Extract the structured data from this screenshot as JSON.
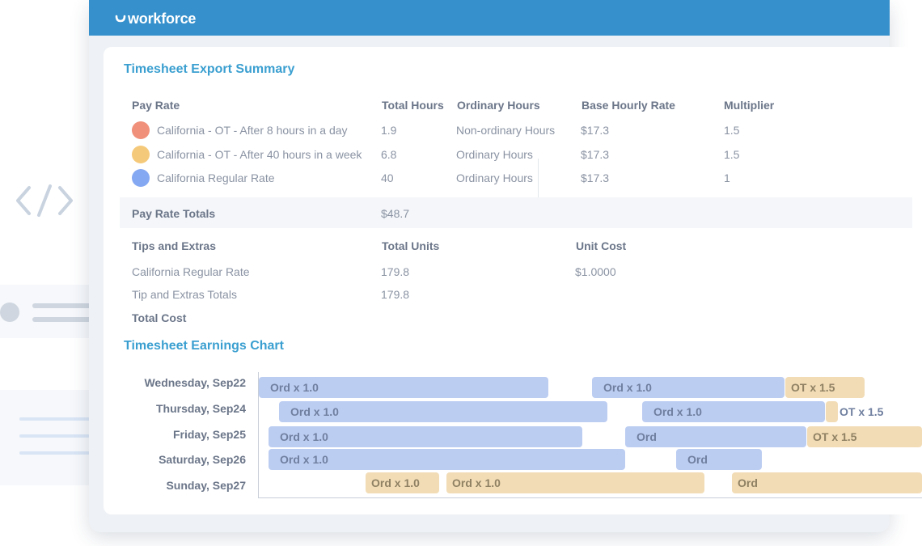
{
  "app": {
    "brand": "workforce"
  },
  "summary": {
    "title": "Timesheet Export Summary",
    "pay_rate_headers": [
      "Pay Rate",
      "Total Hours",
      "Ordinary Hours",
      "Base Hourly Rate",
      "Multiplier"
    ],
    "pay_rates": [
      {
        "name": "California - OT - After 8 hours in a day",
        "total_hours": "1.9",
        "ordinary": "Non-ordinary Hours",
        "base_rate": "$17.3",
        "multiplier": "1.5",
        "color": "#f0907a"
      },
      {
        "name": "California - OT - After 40 hours in a week",
        "total_hours": "6.8",
        "ordinary": "Ordinary Hours",
        "base_rate": "$17.3",
        "multiplier": "1.5",
        "color": "#f5c97a"
      },
      {
        "name": "California Regular Rate",
        "total_hours": "40",
        "ordinary": "Ordinary Hours",
        "base_rate": "$17.3",
        "multiplier": "1",
        "color": "#85a8f2"
      }
    ],
    "totals": {
      "label": "Pay Rate Totals",
      "value": "$48.7"
    },
    "tips_headers": [
      "Tips and Extras",
      "Total Units",
      "Unit Cost"
    ],
    "tips_rows": [
      {
        "name": "California Regular Rate",
        "units": "179.8",
        "unit_cost": "$1.0000"
      },
      {
        "name": "Tip and Extras Totals",
        "units": "179.8",
        "unit_cost": ""
      }
    ],
    "total_cost_label": "Total Cost"
  },
  "earnings_chart": {
    "title": "Timesheet Earnings Chart",
    "days": [
      "Wednesday, Sep22",
      "Thursday, Sep24",
      "Friday, Sep25",
      "Saturday, Sep26",
      "Sunday, Sep27"
    ]
  },
  "chart_data": {
    "type": "gantt",
    "title": "Timesheet Earnings Chart",
    "categories": [
      "Wednesday, Sep22",
      "Thursday, Sep24",
      "Friday, Sep25",
      "Saturday, Sep26",
      "Sunday, Sep27"
    ],
    "segments": [
      {
        "day": "Wednesday, Sep22",
        "label": "Ord x 1.0",
        "kind": "ord",
        "start": 0.0,
        "end": 0.436
      },
      {
        "day": "Wednesday, Sep22",
        "label": "Ord x 1.0",
        "kind": "ord",
        "start": 0.503,
        "end": 0.793
      },
      {
        "day": "Wednesday, Sep22",
        "label": "OT x 1.5",
        "kind": "ot",
        "start": 0.794,
        "end": 0.914
      },
      {
        "day": "Thursday, Sep24",
        "label": "Ord x 1.0",
        "kind": "ord",
        "start": 0.031,
        "end": 0.526
      },
      {
        "day": "Thursday, Sep24",
        "label": "Ord x 1.0",
        "kind": "ord",
        "start": 0.578,
        "end": 0.854
      },
      {
        "day": "Thursday, Sep24",
        "label": "",
        "kind": "ot",
        "start": 0.855,
        "end": 0.873
      },
      {
        "day": "Thursday, Sep24",
        "label": "OT x 1.5",
        "kind": "ot-outline",
        "start": 0.875,
        "end": 1.0
      },
      {
        "day": "Friday, Sep25",
        "label": "Ord x 1.0",
        "kind": "ord",
        "start": 0.015,
        "end": 0.488
      },
      {
        "day": "Friday, Sep25",
        "label": "Ord",
        "kind": "ord",
        "start": 0.552,
        "end": 0.826
      },
      {
        "day": "Friday, Sep25",
        "label": "OT x 1.5",
        "kind": "ot",
        "start": 0.827,
        "end": 1.0
      },
      {
        "day": "Saturday, Sep26",
        "label": "Ord x 1.0",
        "kind": "ord",
        "start": 0.015,
        "end": 0.552
      },
      {
        "day": "Saturday, Sep26",
        "label": "Ord",
        "kind": "ord",
        "start": 0.629,
        "end": 0.758
      },
      {
        "day": "Sunday, Sep27",
        "label": "Ord x 1.0",
        "kind": "ot",
        "start": 0.161,
        "end": 0.272
      },
      {
        "day": "Sunday, Sep27",
        "label": "Ord x 1.0",
        "kind": "ot",
        "start": 0.283,
        "end": 0.672
      },
      {
        "day": "Sunday, Sep27",
        "label": "Ord",
        "kind": "ot",
        "start": 0.713,
        "end": 1.0
      }
    ],
    "colors": {
      "ord": "#bccdf2",
      "ot": "#f2dcb6"
    }
  }
}
